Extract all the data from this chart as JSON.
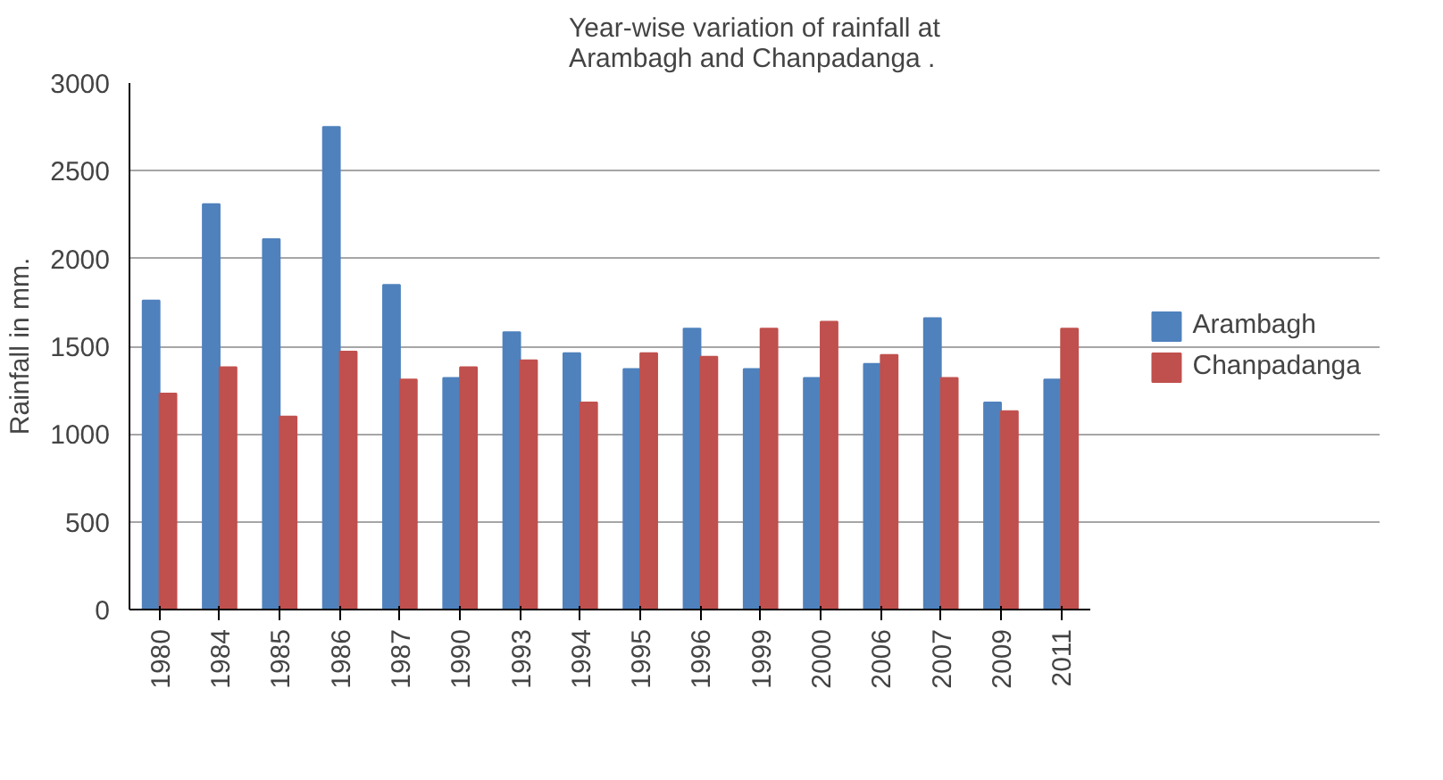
{
  "chart_data": {
    "type": "bar",
    "title": "Year-wise variation of rainfall at\nArambagh and Chanpadanga .",
    "ylabel": "Rainfall in mm.",
    "categories": [
      "1980",
      "1984",
      "1985",
      "1986",
      "1987",
      "1990",
      "1993",
      "1994",
      "1995",
      "1996",
      "1999",
      "2000",
      "2006",
      "2007",
      "2009",
      "2011"
    ],
    "series": [
      {
        "name": "Arambagh",
        "color": "#4f81bd",
        "values": [
          1760,
          2310,
          2110,
          2750,
          1850,
          1320,
          1580,
          1460,
          1370,
          1600,
          1370,
          1320,
          1400,
          1660,
          1180,
          1310
        ]
      },
      {
        "name": "Chanpadanga",
        "color": "#c0504d",
        "values": [
          1230,
          1380,
          1100,
          1470,
          1310,
          1380,
          1420,
          1180,
          1460,
          1440,
          1600,
          1640,
          1450,
          1320,
          1130,
          1600
        ]
      }
    ],
    "ylim": [
      0,
      3000
    ],
    "yticks": [
      0,
      500,
      1000,
      1500,
      2000,
      2500,
      3000
    ],
    "grid": "y",
    "legend": "right"
  }
}
